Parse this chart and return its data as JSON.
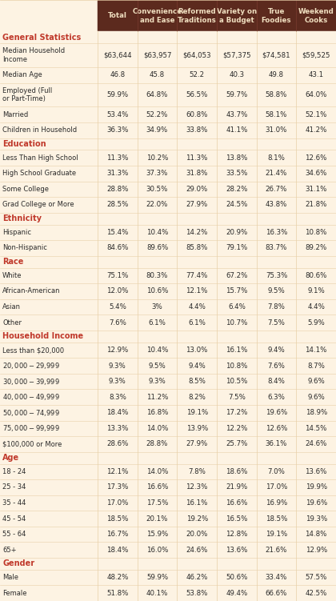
{
  "header_bg": "#5C2A1E",
  "header_text_color": "#F0DFC0",
  "section_text_color": "#C0392B",
  "row_bg": "#FDF3E3",
  "sections": [
    {
      "name": "General Statistics",
      "rows": [
        [
          "Median Household\nIncome",
          "$63,644",
          "$63,957",
          "$64,053",
          "$57,375",
          "$74,581",
          "$59,525"
        ],
        [
          "Median Age",
          "46.8",
          "45.8",
          "52.2",
          "40.3",
          "49.8",
          "43.1"
        ],
        [
          "Employed (Full\nor Part-Time)",
          "59.9%",
          "64.8%",
          "56.5%",
          "59.7%",
          "58.8%",
          "64.0%"
        ],
        [
          "Married",
          "53.4%",
          "52.2%",
          "60.8%",
          "43.7%",
          "58.1%",
          "52.1%"
        ],
        [
          "Children in Household",
          "36.3%",
          "34.9%",
          "33.8%",
          "41.1%",
          "31.0%",
          "41.2%"
        ]
      ]
    },
    {
      "name": "Education",
      "rows": [
        [
          "Less Than High School",
          "11.3%",
          "10.2%",
          "11.3%",
          "13.8%",
          "8.1%",
          "12.6%"
        ],
        [
          "High School Graduate",
          "31.3%",
          "37.3%",
          "31.8%",
          "33.5%",
          "21.4%",
          "34.6%"
        ],
        [
          "Some College",
          "28.8%",
          "30.5%",
          "29.0%",
          "28.2%",
          "26.7%",
          "31.1%"
        ],
        [
          "Grad College or More",
          "28.5%",
          "22.0%",
          "27.9%",
          "24.5%",
          "43.8%",
          "21.8%"
        ]
      ]
    },
    {
      "name": "Ethnicity",
      "rows": [
        [
          "Hispanic",
          "15.4%",
          "10.4%",
          "14.2%",
          "20.9%",
          "16.3%",
          "10.8%"
        ],
        [
          "Non-Hispanic",
          "84.6%",
          "89.6%",
          "85.8%",
          "79.1%",
          "83.7%",
          "89.2%"
        ]
      ]
    },
    {
      "name": "Race",
      "rows": [
        [
          "White",
          "75.1%",
          "80.3%",
          "77.4%",
          "67.2%",
          "75.3%",
          "80.6%"
        ],
        [
          "African-American",
          "12.0%",
          "10.6%",
          "12.1%",
          "15.7%",
          "9.5%",
          "9.1%"
        ],
        [
          "Asian",
          "5.4%",
          "3%",
          "4.4%",
          "6.4%",
          "7.8%",
          "4.4%"
        ],
        [
          "Other",
          "7.6%",
          "6.1%",
          "6.1%",
          "10.7%",
          "7.5%",
          "5.9%"
        ]
      ]
    },
    {
      "name": "Household Income",
      "rows": [
        [
          "Less than $20,000",
          "12.9%",
          "10.4%",
          "13.0%",
          "16.1%",
          "9.4%",
          "14.1%"
        ],
        [
          "$20,000 - $29,999",
          "9.3%",
          "9.5%",
          "9.4%",
          "10.8%",
          "7.6%",
          "8.7%"
        ],
        [
          "$30,000 - $39,999",
          "9.3%",
          "9.3%",
          "8.5%",
          "10.5%",
          "8.4%",
          "9.6%"
        ],
        [
          "$40,000 - $49,999",
          "8.3%",
          "11.2%",
          "8.2%",
          "7.5%",
          "6.3%",
          "9.6%"
        ],
        [
          "$50,000 - $74,999",
          "18.4%",
          "16.8%",
          "19.1%",
          "17.2%",
          "19.6%",
          "18.9%"
        ],
        [
          "$75,000 - $99,999",
          "13.3%",
          "14.0%",
          "13.9%",
          "12.2%",
          "12.6%",
          "14.5%"
        ],
        [
          "$100,000 or More",
          "28.6%",
          "28.8%",
          "27.9%",
          "25.7%",
          "36.1%",
          "24.6%"
        ]
      ]
    },
    {
      "name": "Age",
      "rows": [
        [
          "18 - 24",
          "12.1%",
          "14.0%",
          "7.8%",
          "18.6%",
          "7.0%",
          "13.6%"
        ],
        [
          "25 - 34",
          "17.3%",
          "16.6%",
          "12.3%",
          "21.9%",
          "17.0%",
          "19.9%"
        ],
        [
          "35 - 44",
          "17.0%",
          "17.5%",
          "16.1%",
          "16.6%",
          "16.9%",
          "19.6%"
        ],
        [
          "45 - 54",
          "18.5%",
          "20.1%",
          "19.2%",
          "16.5%",
          "18.5%",
          "19.3%"
        ],
        [
          "55 - 64",
          "16.7%",
          "15.9%",
          "20.0%",
          "12.8%",
          "19.1%",
          "14.8%"
        ],
        [
          "65+",
          "18.4%",
          "16.0%",
          "24.6%",
          "13.6%",
          "21.6%",
          "12.9%"
        ]
      ]
    },
    {
      "name": "Gender",
      "rows": [
        [
          "Male",
          "48.2%",
          "59.9%",
          "46.2%",
          "50.6%",
          "33.4%",
          "57.5%"
        ],
        [
          "Female",
          "51.8%",
          "40.1%",
          "53.8%",
          "49.4%",
          "66.6%",
          "42.5%"
        ]
      ]
    }
  ],
  "col_headers": [
    "Total",
    "Convenience\nand Ease",
    "Reformed\nTraditions",
    "Variety on\na Budget",
    "True\nFoodies",
    "Weekend\nCooks"
  ]
}
